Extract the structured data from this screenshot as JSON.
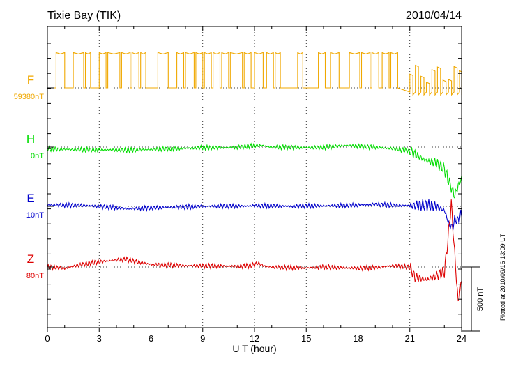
{
  "chart_data": {
    "type": "line",
    "title": "Tixie Bay (TIK)",
    "date": "2010/04/14",
    "xlabel": "U T (hour)",
    "xlim": [
      0,
      24
    ],
    "xticks": [
      0,
      3,
      6,
      9,
      12,
      15,
      18,
      21,
      24
    ],
    "grid": true,
    "scale_bar": {
      "label": "500 nT",
      "value": 500
    },
    "plotted_note": "Plotted at 2010/09/16 13:09 UT",
    "series": [
      {
        "name": "F",
        "baseline_label": "59380nT",
        "baseline_nT": 59380,
        "color": "#f0a800",
        "note": "square-wave pulses between baseline and ~ +275 nT, amplitude reduced near end",
        "pulses": [
          [
            0.5,
            1.0
          ],
          [
            1.5,
            2.1
          ],
          [
            2.2,
            2.5
          ],
          [
            3.0,
            3.4
          ],
          [
            3.5,
            4.2
          ],
          [
            4.3,
            4.8
          ],
          [
            4.9,
            5.3
          ],
          [
            5.4,
            5.7
          ],
          [
            6.4,
            7.0
          ],
          [
            7.5,
            7.9
          ],
          [
            8.0,
            8.5
          ],
          [
            8.6,
            9.0
          ],
          [
            9.1,
            9.5
          ],
          [
            9.6,
            10.0
          ],
          [
            10.1,
            10.5
          ],
          [
            10.6,
            11.3
          ],
          [
            11.4,
            11.8
          ],
          [
            12.0,
            12.5
          ],
          [
            12.7,
            13.1
          ],
          [
            13.2,
            13.5
          ],
          [
            14.5,
            14.8
          ],
          [
            15.7,
            16.1
          ],
          [
            16.4,
            16.9
          ],
          [
            17.5,
            18.1
          ],
          [
            18.2,
            18.7
          ],
          [
            18.8,
            19.2
          ],
          [
            19.4,
            19.8
          ],
          [
            19.9,
            20.3
          ]
        ],
        "pulse_amplitude_nT": 275
      },
      {
        "name": "H",
        "baseline_label": "0nT",
        "baseline_nT": 0,
        "color": "#00dd00",
        "x": [
          0,
          2,
          4,
          4.6,
          6,
          8,
          9,
          10,
          11,
          12,
          12.5,
          13,
          14,
          15,
          16,
          17,
          17.3,
          18,
          19,
          20,
          21,
          21.5,
          22,
          22.5,
          23,
          23.3,
          23.6,
          23.8,
          24
        ],
        "y": [
          -15,
          -20,
          -22,
          -25,
          -18,
          -10,
          -4,
          -5,
          -3,
          12,
          10,
          0,
          -2,
          -5,
          -2,
          8,
          14,
          6,
          -1,
          -12,
          -30,
          -70,
          -110,
          -120,
          -170,
          -280,
          -380,
          -300,
          -240
        ]
      },
      {
        "name": "E",
        "baseline_label": "10nT",
        "baseline_nT": 10,
        "color": "#0000cc",
        "x": [
          0,
          2,
          4,
          4.6,
          6,
          8,
          9,
          10,
          11,
          12,
          13,
          14,
          15,
          16,
          17,
          18,
          19,
          20,
          21,
          22,
          22.5,
          23,
          23.3,
          23.5,
          23.6,
          23.8,
          24
        ],
        "y": [
          10,
          8,
          -10,
          -20,
          -12,
          -4,
          0,
          2,
          0,
          5,
          3,
          0,
          2,
          4,
          6,
          10,
          16,
          8,
          5,
          10,
          0,
          -30,
          -150,
          -160,
          -100,
          -110,
          -60
        ]
      },
      {
        "name": "Z",
        "baseline_label": "80nT",
        "baseline_nT": 80,
        "color": "#dd0000",
        "x": [
          0,
          1,
          2,
          3,
          4,
          4.6,
          5,
          6,
          8,
          10,
          11,
          11.8,
          12.2,
          12.6,
          13,
          14,
          15,
          16,
          17,
          18,
          19,
          20,
          21,
          21.3,
          22,
          22.5,
          23,
          23.2,
          23.4,
          23.6,
          23.8,
          24
        ],
        "y": [
          0,
          -10,
          20,
          40,
          55,
          60,
          45,
          20,
          10,
          8,
          5,
          10,
          30,
          5,
          0,
          -5,
          -8,
          0,
          -5,
          -10,
          -5,
          10,
          0,
          -80,
          -100,
          -70,
          -40,
          200,
          500,
          100,
          -280,
          -100
        ]
      }
    ]
  }
}
